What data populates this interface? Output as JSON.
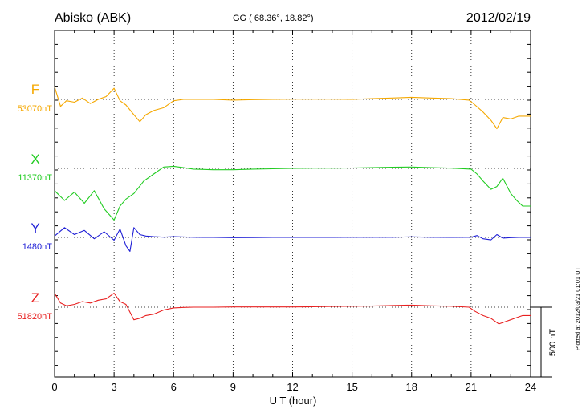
{
  "header": {
    "station": "Abisko (ABK)",
    "coords": "GG ( 68.36°,  18.82°)",
    "date": "2012/02/19"
  },
  "footer": {
    "plotted": "Plotted at 2012/03/21 01:01  UT"
  },
  "chart_data": {
    "type": "line",
    "xlabel": "U T (hour)",
    "xlim": [
      0,
      24
    ],
    "xticks": [
      "0",
      "3",
      "6",
      "9",
      "12",
      "15",
      "18",
      "21",
      "24"
    ],
    "grid": "dotted",
    "scale_bar": {
      "label": "500 nT",
      "value_nT": 500
    },
    "series": [
      {
        "name": "F",
        "baseline_label": "53070nT",
        "color": "#f5a800",
        "points": [
          [
            0,
            53160
          ],
          [
            0.3,
            53020
          ],
          [
            0.6,
            53060
          ],
          [
            1,
            53050
          ],
          [
            1.4,
            53080
          ],
          [
            1.8,
            53040
          ],
          [
            2.2,
            53070
          ],
          [
            2.6,
            53090
          ],
          [
            3,
            53150
          ],
          [
            3.3,
            53060
          ],
          [
            3.6,
            53030
          ],
          [
            4,
            52960
          ],
          [
            4.3,
            52910
          ],
          [
            4.6,
            52960
          ],
          [
            5,
            52990
          ],
          [
            5.5,
            53010
          ],
          [
            6,
            53060
          ],
          [
            6.5,
            53070
          ],
          [
            7,
            53070
          ],
          [
            8,
            53070
          ],
          [
            9,
            53065
          ],
          [
            10,
            53068
          ],
          [
            11,
            53070
          ],
          [
            12,
            53072
          ],
          [
            13,
            53072
          ],
          [
            14,
            53072
          ],
          [
            15,
            53070
          ],
          [
            16,
            53075
          ],
          [
            17,
            53080
          ],
          [
            18,
            53085
          ],
          [
            19,
            53080
          ],
          [
            20,
            53075
          ],
          [
            20.9,
            53065
          ],
          [
            21.2,
            53030
          ],
          [
            21.6,
            52980
          ],
          [
            22,
            52920
          ],
          [
            22.3,
            52860
          ],
          [
            22.6,
            52940
          ],
          [
            23,
            52930
          ],
          [
            23.4,
            52950
          ],
          [
            24,
            52950
          ]
        ]
      },
      {
        "name": "X",
        "baseline_label": "11370nT",
        "color": "#22cc22",
        "points": [
          [
            0,
            11210
          ],
          [
            0.5,
            11140
          ],
          [
            1,
            11200
          ],
          [
            1.5,
            11120
          ],
          [
            2,
            11210
          ],
          [
            2.5,
            11080
          ],
          [
            3,
            11000
          ],
          [
            3.3,
            11100
          ],
          [
            3.6,
            11150
          ],
          [
            4,
            11190
          ],
          [
            4.5,
            11280
          ],
          [
            5,
            11330
          ],
          [
            5.5,
            11380
          ],
          [
            6,
            11385
          ],
          [
            6.5,
            11375
          ],
          [
            7,
            11365
          ],
          [
            8,
            11360
          ],
          [
            9,
            11360
          ],
          [
            10,
            11365
          ],
          [
            11,
            11367
          ],
          [
            12,
            11370
          ],
          [
            13,
            11372
          ],
          [
            14,
            11372
          ],
          [
            15,
            11373
          ],
          [
            16,
            11375
          ],
          [
            17,
            11378
          ],
          [
            18,
            11380
          ],
          [
            19,
            11375
          ],
          [
            20,
            11372
          ],
          [
            21,
            11365
          ],
          [
            21.3,
            11330
          ],
          [
            21.6,
            11280
          ],
          [
            22,
            11220
          ],
          [
            22.3,
            11240
          ],
          [
            22.6,
            11300
          ],
          [
            23,
            11190
          ],
          [
            23.3,
            11140
          ],
          [
            23.6,
            11100
          ],
          [
            24,
            11100
          ]
        ]
      },
      {
        "name": "Y",
        "baseline_label": "1480nT",
        "color": "#1f1fd6",
        "points": [
          [
            0,
            1490
          ],
          [
            0.5,
            1550
          ],
          [
            1,
            1500
          ],
          [
            1.5,
            1530
          ],
          [
            2,
            1470
          ],
          [
            2.5,
            1520
          ],
          [
            3,
            1460
          ],
          [
            3.3,
            1540
          ],
          [
            3.6,
            1420
          ],
          [
            3.8,
            1380
          ],
          [
            4,
            1550
          ],
          [
            4.3,
            1500
          ],
          [
            4.6,
            1490
          ],
          [
            5,
            1485
          ],
          [
            5.5,
            1482
          ],
          [
            6,
            1485
          ],
          [
            7,
            1481
          ],
          [
            8,
            1480
          ],
          [
            9,
            1478
          ],
          [
            10,
            1479
          ],
          [
            11,
            1480
          ],
          [
            12,
            1480
          ],
          [
            13,
            1480
          ],
          [
            14,
            1480
          ],
          [
            15,
            1481
          ],
          [
            16,
            1481
          ],
          [
            17,
            1481
          ],
          [
            18,
            1484
          ],
          [
            19,
            1481
          ],
          [
            20,
            1480
          ],
          [
            21,
            1481
          ],
          [
            21.3,
            1493
          ],
          [
            21.6,
            1470
          ],
          [
            22,
            1462
          ],
          [
            22.3,
            1500
          ],
          [
            22.6,
            1475
          ],
          [
            23,
            1478
          ],
          [
            23.4,
            1480
          ],
          [
            24,
            1480
          ]
        ]
      },
      {
        "name": "Z",
        "baseline_label": "51820nT",
        "color": "#e82020",
        "points": [
          [
            0,
            51920
          ],
          [
            0.3,
            51850
          ],
          [
            0.6,
            51830
          ],
          [
            1,
            51840
          ],
          [
            1.4,
            51860
          ],
          [
            1.8,
            51850
          ],
          [
            2.2,
            51870
          ],
          [
            2.6,
            51880
          ],
          [
            3,
            51920
          ],
          [
            3.3,
            51860
          ],
          [
            3.6,
            51840
          ],
          [
            4,
            51730
          ],
          [
            4.3,
            51740
          ],
          [
            4.6,
            51760
          ],
          [
            5,
            51770
          ],
          [
            5.5,
            51800
          ],
          [
            6,
            51815
          ],
          [
            6.5,
            51818
          ],
          [
            7,
            51820
          ],
          [
            8,
            51820
          ],
          [
            9,
            51822
          ],
          [
            10,
            51822
          ],
          [
            11,
            51822
          ],
          [
            12,
            51822
          ],
          [
            13,
            51823
          ],
          [
            14,
            51825
          ],
          [
            15,
            51827
          ],
          [
            16,
            51828
          ],
          [
            17,
            51832
          ],
          [
            18,
            51835
          ],
          [
            19,
            51830
          ],
          [
            20,
            51827
          ],
          [
            20.9,
            51820
          ],
          [
            21.2,
            51790
          ],
          [
            21.6,
            51760
          ],
          [
            22,
            51740
          ],
          [
            22.4,
            51700
          ],
          [
            22.8,
            51720
          ],
          [
            23.2,
            51740
          ],
          [
            23.6,
            51760
          ],
          [
            24,
            51760
          ]
        ]
      }
    ]
  }
}
